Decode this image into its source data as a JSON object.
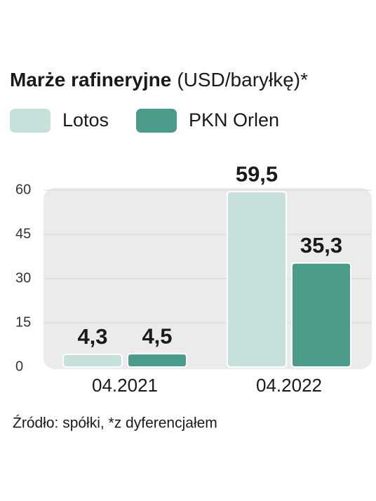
{
  "chart_data": {
    "type": "bar",
    "title": "Marże rafineryjne",
    "subtitle": "(USD/baryłkę)*",
    "categories": [
      "04.2021",
      "04.2022"
    ],
    "series": [
      {
        "name": "Lotos",
        "color": "#c6e1db",
        "values": [
          4.3,
          59.5
        ],
        "value_labels": [
          "4,3",
          "59,5"
        ]
      },
      {
        "name": "PKN Orlen",
        "color": "#4b9b8b",
        "values": [
          4.5,
          35.3
        ],
        "value_labels": [
          "4,5",
          "35,3"
        ]
      }
    ],
    "ylim": [
      0,
      60
    ],
    "yticks": [
      0,
      15,
      30,
      45,
      60
    ],
    "grid": true,
    "source": "Źródło: spółki,  *z dyferencjałem"
  }
}
